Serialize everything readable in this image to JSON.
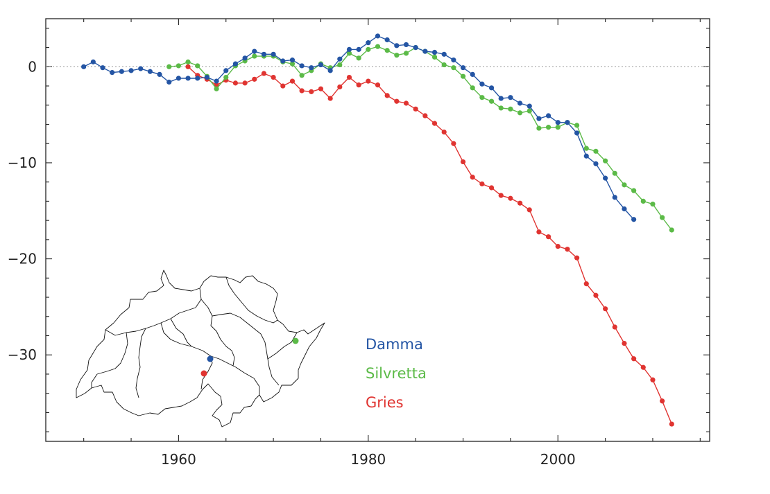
{
  "chart_data": {
    "type": "line",
    "title": "",
    "xlabel": "",
    "ylabel": "",
    "xlim": [
      1946,
      2016
    ],
    "ylim": [
      -39,
      5
    ],
    "x_ticks": [
      1960,
      1980,
      2000
    ],
    "y_ticks": [
      0,
      -10,
      -20,
      -30
    ],
    "x_tick_labels": [
      "1960",
      "1980",
      "2000"
    ],
    "y_tick_labels": [
      "0",
      "−10",
      "−20",
      "−30"
    ],
    "zero_line": true,
    "grid": false,
    "legend_position": "center-bottom",
    "series": [
      {
        "name": "Damma",
        "color": "#2455a4",
        "points": [
          [
            1950,
            0.0
          ],
          [
            1951,
            0.5
          ],
          [
            1952,
            -0.1
          ],
          [
            1953,
            -0.6
          ],
          [
            1954,
            -0.5
          ],
          [
            1955,
            -0.4
          ],
          [
            1956,
            -0.2
          ],
          [
            1957,
            -0.5
          ],
          [
            1958,
            -0.8
          ],
          [
            1959,
            -1.6
          ],
          [
            1960,
            -1.2
          ],
          [
            1961,
            -1.2
          ],
          [
            1962,
            -1.2
          ],
          [
            1963,
            -1.1
          ],
          [
            1964,
            -1.5
          ],
          [
            1965,
            -0.4
          ],
          [
            1966,
            0.3
          ],
          [
            1967,
            0.9
          ],
          [
            1968,
            1.6
          ],
          [
            1969,
            1.3
          ],
          [
            1970,
            1.3
          ],
          [
            1971,
            0.6
          ],
          [
            1972,
            0.7
          ],
          [
            1973,
            0.1
          ],
          [
            1974,
            -0.1
          ],
          [
            1975,
            0.2
          ],
          [
            1976,
            -0.4
          ],
          [
            1977,
            0.8
          ],
          [
            1978,
            1.8
          ],
          [
            1979,
            1.8
          ],
          [
            1980,
            2.5
          ],
          [
            1981,
            3.2
          ],
          [
            1982,
            2.8
          ],
          [
            1983,
            2.2
          ],
          [
            1984,
            2.3
          ],
          [
            1985,
            2.0
          ],
          [
            1986,
            1.6
          ],
          [
            1987,
            1.5
          ],
          [
            1988,
            1.3
          ],
          [
            1989,
            0.7
          ],
          [
            1990,
            -0.1
          ],
          [
            1991,
            -0.8
          ],
          [
            1992,
            -1.8
          ],
          [
            1993,
            -2.2
          ],
          [
            1994,
            -3.3
          ],
          [
            1995,
            -3.2
          ],
          [
            1996,
            -3.8
          ],
          [
            1997,
            -4.1
          ],
          [
            1998,
            -5.4
          ],
          [
            1999,
            -5.1
          ],
          [
            2000,
            -5.8
          ],
          [
            2001,
            -5.8
          ],
          [
            2002,
            -6.9
          ],
          [
            2003,
            -9.3
          ],
          [
            2004,
            -10.1
          ],
          [
            2005,
            -11.6
          ],
          [
            2006,
            -13.6
          ],
          [
            2007,
            -14.8
          ],
          [
            2008,
            -15.9
          ]
        ]
      },
      {
        "name": "Silvretta",
        "color": "#5bba47",
        "points": [
          [
            1959,
            0.0
          ],
          [
            1960,
            0.1
          ],
          [
            1961,
            0.5
          ],
          [
            1962,
            0.1
          ],
          [
            1963,
            -1.0
          ],
          [
            1964,
            -2.3
          ],
          [
            1965,
            -1.1
          ],
          [
            1966,
            0.1
          ],
          [
            1967,
            0.6
          ],
          [
            1968,
            1.1
          ],
          [
            1969,
            1.1
          ],
          [
            1970,
            1.1
          ],
          [
            1971,
            0.5
          ],
          [
            1972,
            0.3
          ],
          [
            1973,
            -0.9
          ],
          [
            1974,
            -0.4
          ],
          [
            1975,
            0.3
          ],
          [
            1976,
            -0.1
          ],
          [
            1977,
            0.2
          ],
          [
            1978,
            1.4
          ],
          [
            1979,
            0.9
          ],
          [
            1980,
            1.8
          ],
          [
            1981,
            2.1
          ],
          [
            1982,
            1.7
          ],
          [
            1983,
            1.2
          ],
          [
            1984,
            1.4
          ],
          [
            1985,
            2.0
          ],
          [
            1986,
            1.6
          ],
          [
            1987,
            1.0
          ],
          [
            1988,
            0.2
          ],
          [
            1989,
            -0.1
          ],
          [
            1990,
            -1.0
          ],
          [
            1991,
            -2.2
          ],
          [
            1992,
            -3.2
          ],
          [
            1993,
            -3.6
          ],
          [
            1994,
            -4.3
          ],
          [
            1995,
            -4.4
          ],
          [
            1996,
            -4.8
          ],
          [
            1997,
            -4.6
          ],
          [
            1998,
            -6.4
          ],
          [
            1999,
            -6.3
          ],
          [
            2000,
            -6.3
          ],
          [
            2001,
            -5.8
          ],
          [
            2002,
            -6.1
          ],
          [
            2003,
            -8.5
          ],
          [
            2004,
            -8.8
          ],
          [
            2005,
            -9.8
          ],
          [
            2006,
            -11.1
          ],
          [
            2007,
            -12.3
          ],
          [
            2008,
            -12.9
          ],
          [
            2009,
            -14.0
          ],
          [
            2010,
            -14.3
          ],
          [
            2011,
            -15.7
          ],
          [
            2012,
            -17.0
          ]
        ]
      },
      {
        "name": "Gries",
        "color": "#e03431",
        "points": [
          [
            1961,
            0.0
          ],
          [
            1962,
            -0.9
          ],
          [
            1963,
            -1.3
          ],
          [
            1964,
            -1.9
          ],
          [
            1965,
            -1.4
          ],
          [
            1966,
            -1.7
          ],
          [
            1967,
            -1.7
          ],
          [
            1968,
            -1.3
          ],
          [
            1969,
            -0.7
          ],
          [
            1970,
            -1.1
          ],
          [
            1971,
            -2.0
          ],
          [
            1972,
            -1.5
          ],
          [
            1973,
            -2.5
          ],
          [
            1974,
            -2.6
          ],
          [
            1975,
            -2.3
          ],
          [
            1976,
            -3.3
          ],
          [
            1977,
            -2.1
          ],
          [
            1978,
            -1.1
          ],
          [
            1979,
            -1.9
          ],
          [
            1980,
            -1.5
          ],
          [
            1981,
            -1.9
          ],
          [
            1982,
            -3.0
          ],
          [
            1983,
            -3.6
          ],
          [
            1984,
            -3.8
          ],
          [
            1985,
            -4.4
          ],
          [
            1986,
            -5.1
          ],
          [
            1987,
            -5.9
          ],
          [
            1988,
            -6.8
          ],
          [
            1989,
            -8.0
          ],
          [
            1990,
            -9.9
          ],
          [
            1991,
            -11.5
          ],
          [
            1992,
            -12.2
          ],
          [
            1993,
            -12.6
          ],
          [
            1994,
            -13.4
          ],
          [
            1995,
            -13.7
          ],
          [
            1996,
            -14.2
          ],
          [
            1997,
            -14.9
          ],
          [
            1998,
            -17.2
          ],
          [
            1999,
            -17.7
          ],
          [
            2000,
            -18.7
          ],
          [
            2001,
            -19.0
          ],
          [
            2002,
            -19.9
          ],
          [
            2003,
            -22.6
          ],
          [
            2004,
            -23.8
          ],
          [
            2005,
            -25.2
          ],
          [
            2006,
            -27.1
          ],
          [
            2007,
            -28.8
          ],
          [
            2008,
            -30.4
          ],
          [
            2009,
            -31.3
          ],
          [
            2010,
            -32.6
          ],
          [
            2011,
            -34.8
          ],
          [
            2012,
            -37.2
          ]
        ]
      }
    ],
    "inset_map": {
      "description_markers": [
        "Damma",
        "Silvretta",
        "Gries"
      ],
      "stroke_color": "#000000"
    }
  }
}
